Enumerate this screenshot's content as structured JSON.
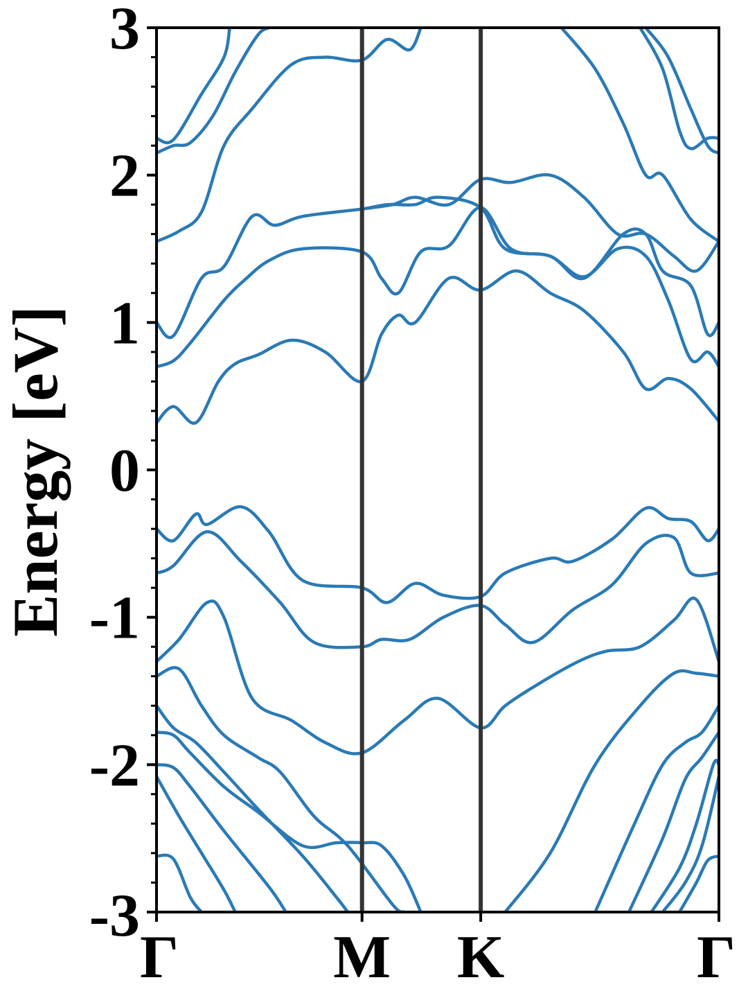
{
  "chart_data": {
    "type": "line",
    "title": "",
    "xlabel": "",
    "ylabel": "Energy [eV]",
    "ylim": [
      -3,
      3
    ],
    "y_ticks": [
      "-3",
      "-2",
      "-1",
      "0",
      "1",
      "2",
      "3"
    ],
    "y_tick_values": [
      -3,
      -2,
      -1,
      0,
      1,
      2,
      3
    ],
    "k_points": [
      "Γ",
      "M",
      "K",
      "Γ"
    ],
    "k_point_positions": [
      0,
      0.3654,
      0.5765,
      1.0
    ],
    "grid": false,
    "legend": "none",
    "colors": {
      "band": "#2a7ab5",
      "divider": "#333333",
      "axes": "#000000"
    },
    "series": [
      {
        "values": [
          [
            0,
            -3.2
          ],
          [
            0.05,
            -3.1
          ],
          [
            0.12,
            -3.0
          ]
        ]
      },
      {
        "values": [
          [
            0,
            -2.62
          ],
          [
            0.03,
            -2.64
          ],
          [
            0.06,
            -2.9
          ],
          [
            0.08,
            -3.0
          ]
        ]
      },
      {
        "values": [
          [
            0,
            -2.08
          ],
          [
            0.04,
            -2.35
          ],
          [
            0.08,
            -2.6
          ],
          [
            0.12,
            -2.85
          ],
          [
            0.14,
            -3.0
          ]
        ]
      },
      {
        "values": [
          [
            0,
            -2.0
          ],
          [
            0.03,
            -2.02
          ],
          [
            0.06,
            -2.15
          ],
          [
            0.12,
            -2.45
          ],
          [
            0.2,
            -2.83
          ],
          [
            0.23,
            -3.0
          ]
        ]
      },
      {
        "values": [
          [
            0,
            -1.78
          ],
          [
            0.03,
            -1.8
          ],
          [
            0.06,
            -1.92
          ],
          [
            0.12,
            -2.15
          ],
          [
            0.18,
            -2.32
          ],
          [
            0.26,
            -2.55
          ],
          [
            0.32,
            -2.53
          ],
          [
            0.365,
            -2.53
          ],
          [
            0.4,
            -2.55
          ],
          [
            0.44,
            -2.75
          ],
          [
            0.47,
            -3.0
          ]
        ]
      },
      {
        "values": [
          [
            0,
            -1.6
          ],
          [
            0.03,
            -1.75
          ],
          [
            0.07,
            -1.85
          ],
          [
            0.12,
            -2.05
          ],
          [
            0.18,
            -2.3
          ],
          [
            0.26,
            -2.62
          ],
          [
            0.32,
            -2.9
          ],
          [
            0.34,
            -3.0
          ]
        ]
      },
      {
        "values": [
          [
            0,
            -1.4
          ],
          [
            0.04,
            -1.35
          ],
          [
            0.08,
            -1.6
          ],
          [
            0.12,
            -1.8
          ],
          [
            0.18,
            -1.95
          ],
          [
            0.22,
            -2.05
          ],
          [
            0.28,
            -2.35
          ],
          [
            0.34,
            -2.55
          ],
          [
            0.42,
            -2.95
          ],
          [
            0.44,
            -3.0
          ]
        ]
      },
      {
        "values": [
          [
            0,
            -1.3
          ],
          [
            0.04,
            -1.15
          ],
          [
            0.09,
            -0.9
          ],
          [
            0.12,
            -1.0
          ],
          [
            0.17,
            -1.55
          ],
          [
            0.24,
            -1.7
          ],
          [
            0.3,
            -1.85
          ],
          [
            0.365,
            -1.92
          ],
          [
            0.44,
            -1.7
          ],
          [
            0.5,
            -1.55
          ],
          [
            0.576,
            -1.75
          ],
          [
            0.62,
            -1.6
          ],
          [
            0.68,
            -1.45
          ],
          [
            0.75,
            -1.3
          ],
          [
            0.8,
            -1.23
          ],
          [
            0.86,
            -1.2
          ],
          [
            0.92,
            -1.02
          ],
          [
            0.96,
            -0.88
          ],
          [
            1.0,
            -1.3
          ]
        ]
      },
      {
        "values": [
          [
            0,
            -0.7
          ],
          [
            0.03,
            -0.65
          ],
          [
            0.09,
            -0.42
          ],
          [
            0.15,
            -0.62
          ],
          [
            0.22,
            -0.9
          ],
          [
            0.28,
            -1.17
          ],
          [
            0.365,
            -1.2
          ],
          [
            0.4,
            -1.15
          ],
          [
            0.45,
            -1.15
          ],
          [
            0.51,
            -1.0
          ],
          [
            0.576,
            -0.92
          ],
          [
            0.62,
            -1.05
          ],
          [
            0.67,
            -1.17
          ],
          [
            0.74,
            -0.95
          ],
          [
            0.81,
            -0.78
          ],
          [
            0.87,
            -0.5
          ],
          [
            0.92,
            -0.46
          ],
          [
            0.95,
            -0.7
          ],
          [
            1.0,
            -0.7
          ]
        ]
      },
      {
        "values": [
          [
            0,
            -0.4
          ],
          [
            0.03,
            -0.48
          ],
          [
            0.07,
            -0.3
          ],
          [
            0.09,
            -0.37
          ],
          [
            0.15,
            -0.25
          ],
          [
            0.2,
            -0.42
          ],
          [
            0.26,
            -0.75
          ],
          [
            0.365,
            -0.8
          ],
          [
            0.41,
            -0.9
          ],
          [
            0.46,
            -0.77
          ],
          [
            0.51,
            -0.85
          ],
          [
            0.576,
            -0.86
          ],
          [
            0.62,
            -0.7
          ],
          [
            0.7,
            -0.6
          ],
          [
            0.74,
            -0.62
          ],
          [
            0.81,
            -0.47
          ],
          [
            0.87,
            -0.26
          ],
          [
            0.91,
            -0.33
          ],
          [
            0.95,
            -0.35
          ],
          [
            0.98,
            -0.48
          ],
          [
            1.0,
            -0.4
          ]
        ]
      },
      {
        "values": [
          [
            0,
            0.32
          ],
          [
            0.03,
            0.43
          ],
          [
            0.07,
            0.32
          ],
          [
            0.11,
            0.6
          ],
          [
            0.14,
            0.72
          ],
          [
            0.18,
            0.78
          ],
          [
            0.24,
            0.88
          ],
          [
            0.3,
            0.8
          ],
          [
            0.365,
            0.6
          ],
          [
            0.4,
            0.92
          ],
          [
            0.43,
            1.05
          ],
          [
            0.46,
            1.0
          ],
          [
            0.52,
            1.3
          ],
          [
            0.576,
            1.22
          ],
          [
            0.64,
            1.35
          ],
          [
            0.7,
            1.2
          ],
          [
            0.76,
            1.08
          ],
          [
            0.83,
            0.8
          ],
          [
            0.87,
            0.55
          ],
          [
            0.91,
            0.62
          ],
          [
            0.95,
            0.55
          ],
          [
            1.0,
            0.33
          ]
        ]
      },
      {
        "values": [
          [
            0,
            0.7
          ],
          [
            0.03,
            0.74
          ],
          [
            0.06,
            0.86
          ],
          [
            0.12,
            1.15
          ],
          [
            0.16,
            1.3
          ],
          [
            0.2,
            1.42
          ],
          [
            0.26,
            1.5
          ],
          [
            0.365,
            1.48
          ],
          [
            0.4,
            1.3
          ],
          [
            0.43,
            1.2
          ],
          [
            0.47,
            1.48
          ],
          [
            0.52,
            1.52
          ],
          [
            0.576,
            1.78
          ],
          [
            0.63,
            1.5
          ],
          [
            0.7,
            1.45
          ],
          [
            0.76,
            1.31
          ],
          [
            0.82,
            1.5
          ],
          [
            0.87,
            1.45
          ],
          [
            0.91,
            1.15
          ],
          [
            0.95,
            0.75
          ],
          [
            0.98,
            0.8
          ],
          [
            1.0,
            0.7
          ]
        ]
      },
      {
        "values": [
          [
            0,
            1.0
          ],
          [
            0.03,
            0.91
          ],
          [
            0.08,
            1.3
          ],
          [
            0.12,
            1.38
          ],
          [
            0.17,
            1.72
          ],
          [
            0.21,
            1.66
          ],
          [
            0.26,
            1.72
          ],
          [
            0.365,
            1.77
          ],
          [
            0.41,
            1.8
          ],
          [
            0.46,
            1.8
          ],
          [
            0.5,
            1.85
          ],
          [
            0.576,
            1.78
          ],
          [
            0.62,
            1.5
          ],
          [
            0.7,
            1.45
          ],
          [
            0.76,
            1.3
          ],
          [
            0.83,
            1.6
          ],
          [
            0.87,
            1.6
          ],
          [
            0.9,
            1.35
          ],
          [
            0.95,
            1.25
          ],
          [
            0.98,
            0.92
          ],
          [
            1.0,
            1.0
          ]
        ]
      },
      {
        "values": [
          [
            0,
            1.55
          ],
          [
            0.04,
            1.62
          ],
          [
            0.08,
            1.75
          ],
          [
            0.12,
            2.2
          ],
          [
            0.17,
            2.45
          ],
          [
            0.24,
            2.75
          ],
          [
            0.3,
            2.8
          ],
          [
            0.365,
            2.78
          ],
          [
            0.41,
            2.92
          ],
          [
            0.45,
            2.85
          ],
          [
            0.47,
            3.0
          ]
        ]
      },
      {
        "values": [
          [
            0,
            2.15
          ],
          [
            0.03,
            2.2
          ],
          [
            0.06,
            2.22
          ],
          [
            0.1,
            2.4
          ],
          [
            0.14,
            2.7
          ],
          [
            0.18,
            2.95
          ],
          [
            0.2,
            3.0
          ]
        ]
      },
      {
        "values": [
          [
            0,
            2.25
          ],
          [
            0.03,
            2.24
          ],
          [
            0.08,
            2.55
          ],
          [
            0.12,
            2.8
          ],
          [
            0.13,
            3.0
          ]
        ]
      },
      {
        "values": [
          [
            0.365,
            1.77
          ],
          [
            0.42,
            1.8
          ],
          [
            0.46,
            1.85
          ],
          [
            0.52,
            1.8
          ],
          [
            0.576,
            1.97
          ],
          [
            0.63,
            1.95
          ],
          [
            0.7,
            2.0
          ],
          [
            0.76,
            1.85
          ],
          [
            0.82,
            1.6
          ],
          [
            0.87,
            1.6
          ],
          [
            0.92,
            1.45
          ],
          [
            0.96,
            1.35
          ],
          [
            1.0,
            1.55
          ]
        ]
      },
      {
        "values": [
          [
            0.72,
            3.0
          ],
          [
            0.78,
            2.72
          ],
          [
            0.83,
            2.35
          ],
          [
            0.87,
            2.0
          ],
          [
            0.9,
            2.0
          ],
          [
            0.95,
            1.7
          ],
          [
            1.0,
            1.55
          ]
        ]
      },
      {
        "values": [
          [
            0.86,
            3.0
          ],
          [
            0.9,
            2.72
          ],
          [
            0.93,
            2.3
          ],
          [
            0.95,
            2.18
          ],
          [
            0.98,
            2.25
          ],
          [
            1.0,
            2.25
          ]
        ]
      },
      {
        "values": [
          [
            0.87,
            3.0
          ],
          [
            0.91,
            2.8
          ],
          [
            0.95,
            2.45
          ],
          [
            0.98,
            2.2
          ],
          [
            1.0,
            2.15
          ]
        ]
      },
      {
        "values": [
          [
            0.62,
            -3.0
          ],
          [
            0.7,
            -2.6
          ],
          [
            0.78,
            -2.0
          ],
          [
            0.86,
            -1.6
          ],
          [
            0.92,
            -1.38
          ],
          [
            0.96,
            -1.38
          ],
          [
            1.0,
            -1.4
          ]
        ]
      },
      {
        "values": [
          [
            0.78,
            -3.0
          ],
          [
            0.85,
            -2.4
          ],
          [
            0.9,
            -2.0
          ],
          [
            0.94,
            -1.85
          ],
          [
            0.97,
            -1.78
          ],
          [
            1.0,
            -1.6
          ]
        ]
      },
      {
        "values": [
          [
            0.84,
            -3.0
          ],
          [
            0.9,
            -2.5
          ],
          [
            0.94,
            -2.1
          ],
          [
            0.97,
            -1.95
          ],
          [
            1.0,
            -1.78
          ]
        ]
      },
      {
        "values": [
          [
            0.88,
            -3.0
          ],
          [
            0.93,
            -2.7
          ],
          [
            0.96,
            -2.4
          ],
          [
            0.99,
            -2.0
          ],
          [
            1.0,
            -2.0
          ]
        ]
      },
      {
        "values": [
          [
            0.9,
            -3.0
          ],
          [
            0.94,
            -2.8
          ],
          [
            0.97,
            -2.55
          ],
          [
            1.0,
            -2.08
          ]
        ]
      },
      {
        "values": [
          [
            0.93,
            -3.0
          ],
          [
            0.96,
            -2.8
          ],
          [
            0.98,
            -2.65
          ],
          [
            1.0,
            -2.62
          ]
        ]
      }
    ]
  }
}
